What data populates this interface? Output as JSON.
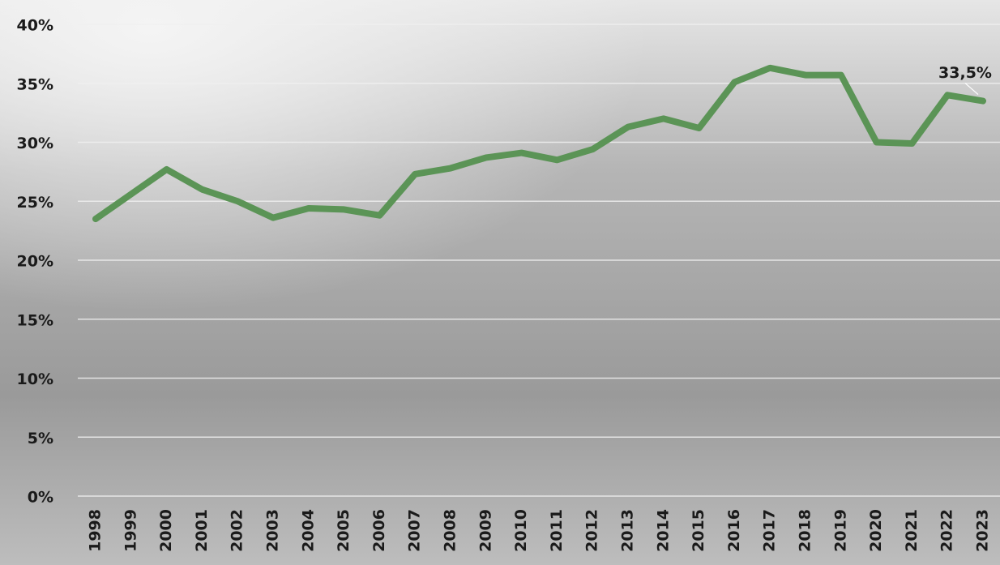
{
  "chart_data": {
    "type": "line",
    "categories": [
      "1998",
      "1999",
      "2000",
      "2001",
      "2002",
      "2003",
      "2004",
      "2005",
      "2006",
      "2007",
      "2008",
      "2009",
      "2010",
      "2011",
      "2012",
      "2013",
      "2014",
      "2015",
      "2016",
      "2017",
      "2018",
      "2019",
      "2020",
      "2021",
      "2022",
      "2023"
    ],
    "values": [
      23.5,
      25.6,
      27.7,
      26.0,
      25.0,
      23.6,
      24.4,
      24.3,
      23.8,
      27.3,
      27.8,
      28.7,
      29.1,
      28.5,
      29.4,
      31.3,
      32.0,
      31.2,
      35.1,
      36.3,
      35.7,
      35.7,
      30.0,
      29.9,
      34.0,
      33.5
    ],
    "value_labels": [
      null,
      null,
      null,
      null,
      null,
      null,
      null,
      null,
      null,
      null,
      null,
      null,
      null,
      null,
      null,
      null,
      null,
      null,
      null,
      null,
      null,
      null,
      null,
      null,
      null,
      "33,5%"
    ],
    "color": "#5b9456",
    "ylim": [
      0,
      40
    ],
    "yticks": [
      {
        "value": 0,
        "label": "0%"
      },
      {
        "value": 5,
        "label": "5%"
      },
      {
        "value": 10,
        "label": "10%"
      },
      {
        "value": 15,
        "label": "15%"
      },
      {
        "value": 20,
        "label": "20%"
      },
      {
        "value": 25,
        "label": "25%"
      },
      {
        "value": 30,
        "label": "30%"
      },
      {
        "value": 35,
        "label": "35%"
      },
      {
        "value": 40,
        "label": "40%"
      }
    ],
    "grid": true
  }
}
